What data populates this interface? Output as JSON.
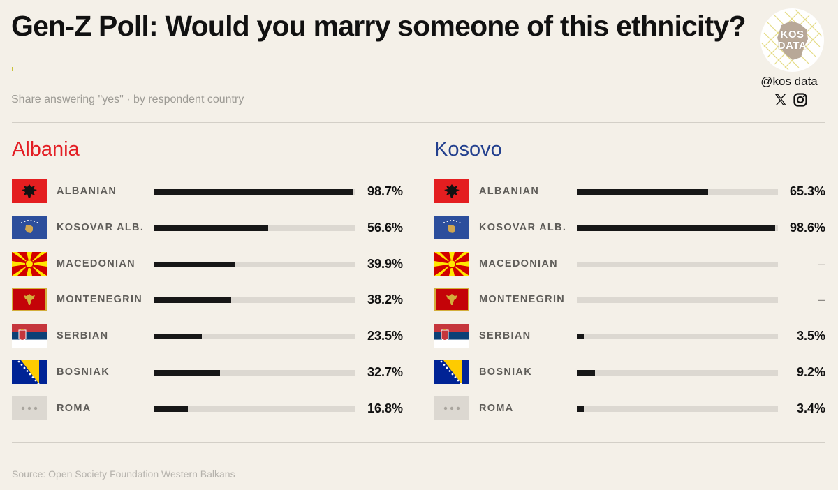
{
  "title": "Gen-Z Poll: Would you marry someone of this ethnicity?",
  "subtitle": "Share answering \"yes\" · by respondent country",
  "source": "Source: Open Society Foundation Western Balkans",
  "brand": {
    "logo_line1": "KOS",
    "logo_line2": "DATA",
    "handle": "@kos data",
    "social_icons": [
      "x-icon",
      "instagram-icon"
    ]
  },
  "colors": {
    "background": "#f4f0e8",
    "bar": "#171717",
    "track": "#dcd8d1",
    "albania_title": "#e31e24",
    "kosovo_title": "#23408e"
  },
  "chart_data": [
    {
      "type": "bar",
      "title": "Albania",
      "unit": "%",
      "xlim": [
        0,
        100
      ],
      "categories": [
        "ALBANIAN",
        "KOSOVAR ALB.",
        "MACEDONIAN",
        "MONTENEGRIN",
        "SERBIAN",
        "BOSNIAK",
        "ROMA"
      ],
      "values": [
        98.7,
        56.6,
        39.9,
        38.2,
        23.5,
        32.7,
        16.8
      ],
      "labels": [
        "98.7%",
        "56.6%",
        "39.9%",
        "38.2%",
        "23.5%",
        "32.7%",
        "16.8%"
      ]
    },
    {
      "type": "bar",
      "title": "Kosovo",
      "unit": "%",
      "xlim": [
        0,
        100
      ],
      "categories": [
        "ALBANIAN",
        "KOSOVAR ALB.",
        "MACEDONIAN",
        "MONTENEGRIN",
        "SERBIAN",
        "BOSNIAK",
        "ROMA"
      ],
      "values": [
        65.3,
        98.6,
        null,
        null,
        3.5,
        9.2,
        3.4
      ],
      "labels": [
        "65.3%",
        "98.6%",
        "–",
        "–",
        "3.5%",
        "9.2%",
        "3.4%"
      ]
    }
  ],
  "flag_icons": [
    "albania-flag-icon",
    "kosovo-flag-icon",
    "north-macedonia-flag-icon",
    "montenegro-flag-icon",
    "serbia-flag-icon",
    "bosnia-flag-icon",
    "roma-placeholder-icon"
  ]
}
